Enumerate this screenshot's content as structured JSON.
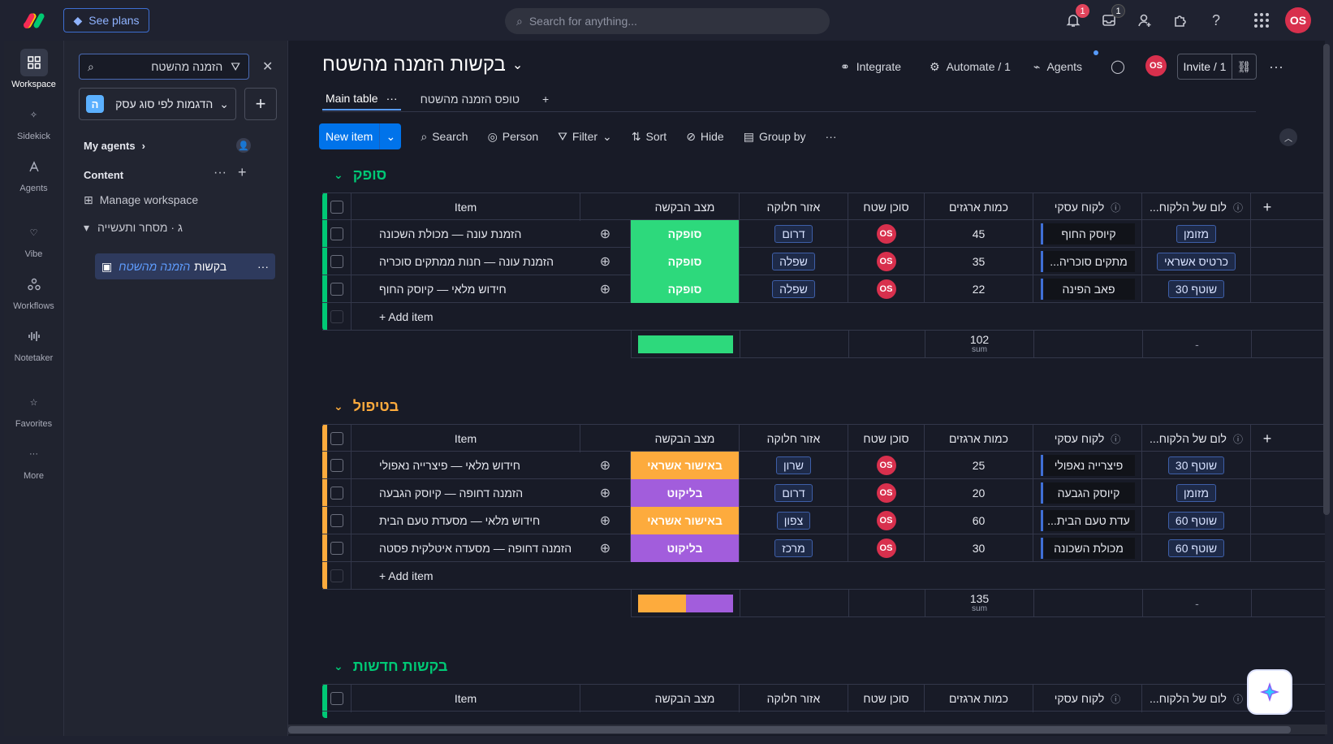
{
  "topbar": {
    "see_plans": "See plans",
    "search_placeholder": "Search for anything...",
    "notif_count": "1",
    "inbox_count": "1",
    "user_initials": "OS"
  },
  "rail": [
    {
      "label": "Workspace"
    },
    {
      "label": "Sidekick"
    },
    {
      "label": "Agents"
    },
    {
      "label": "Vibe"
    },
    {
      "label": "Workflows"
    },
    {
      "label": "Notetaker"
    },
    {
      "label": "Favorites"
    },
    {
      "label": "More"
    }
  ],
  "left": {
    "search_value": "הזמנה מהשטח",
    "workspace": "הדגמות לפי סוג עסק",
    "workspace_letter": "ה",
    "my_agents": "My agents",
    "content": "Content",
    "manage": "Manage workspace",
    "folder": "ג · מסחר ותעשייה",
    "board_prefix": "בקשות",
    "board_highlight": "הזמנה מהשטח"
  },
  "board": {
    "title": "בקשות הזמנה מהשטח",
    "integrate": "Integrate",
    "automate": "Automate / 1",
    "agents": "Agents",
    "invite": "Invite / 1",
    "user_initials": "OS"
  },
  "tabs": [
    {
      "label": "Main table"
    },
    {
      "label": "טופס הזמנה מהשטח"
    }
  ],
  "toolbar": {
    "new_item": "New item",
    "search": "Search",
    "person": "Person",
    "filter": "Filter",
    "sort": "Sort",
    "hide": "Hide",
    "group_by": "Group by"
  },
  "columns": {
    "item": "Item",
    "status": "מצב הבקשה",
    "zone": "אזור חלוקה",
    "agent": "סוכן שטח",
    "qty": "כמות ארגזים",
    "client": "לקוח עסקי",
    "payment": "...לום של הלקוח"
  },
  "add_item": "+ Add item",
  "sum_label": "sum",
  "dash": "-",
  "groups": [
    {
      "title": "סופק",
      "color": "#00c875",
      "sum": "102",
      "rows": [
        {
          "item": "הזמנת עונה — מכולת השכונה",
          "status": "סופקה",
          "status_color": "#2dd97c",
          "zone": "דרום",
          "agent": "OS",
          "qty": "45",
          "client": "קיוסק החוף",
          "payment": "מזומן"
        },
        {
          "item": "הזמנת עונה — חנות ממתקים סוכריה",
          "status": "סופקה",
          "status_color": "#2dd97c",
          "zone": "שפלה",
          "agent": "OS",
          "qty": "35",
          "client": "...מתקים סוכריה",
          "payment": "כרטיס אשראי"
        },
        {
          "item": "חידוש מלאי — קיוסק החוף",
          "status": "סופקה",
          "status_color": "#2dd97c",
          "zone": "שפלה",
          "agent": "OS",
          "qty": "22",
          "client": "פאב הפינה",
          "payment": "שוטף 30"
        }
      ]
    },
    {
      "title": "בטיפול",
      "color": "#fdab3d",
      "sum": "135",
      "rows": [
        {
          "item": "חידוש מלאי — פיצרייה נאפולי",
          "status": "באישור אשראי",
          "status_color": "#fdab3d",
          "zone": "שרון",
          "agent": "OS",
          "qty": "25",
          "client": "פיצרייה נאפולי",
          "payment": "שוטף 30"
        },
        {
          "item": "הזמנה דחופה — קיוסק הגבעה",
          "status": "בליקוט",
          "status_color": "#a25ddc",
          "zone": "דרום",
          "agent": "OS",
          "qty": "20",
          "client": "קיוסק הגבעה",
          "payment": "מזומן"
        },
        {
          "item": "חידוש מלאי — מסעדת טעם הבית",
          "status": "באישור אשראי",
          "status_color": "#fdab3d",
          "zone": "צפון",
          "agent": "OS",
          "qty": "60",
          "client": "...עדת טעם הבית",
          "payment": "שוטף 60"
        },
        {
          "item": "הזמנה דחופה — מסעדה איטלקית פסטה",
          "status": "בליקוט",
          "status_color": "#a25ddc",
          "zone": "מרכז",
          "agent": "OS",
          "qty": "30",
          "client": "מכולת השכונה",
          "payment": "שוטף 60"
        }
      ]
    },
    {
      "title": "בקשות חדשות",
      "color": "#00c875",
      "rows": []
    }
  ]
}
